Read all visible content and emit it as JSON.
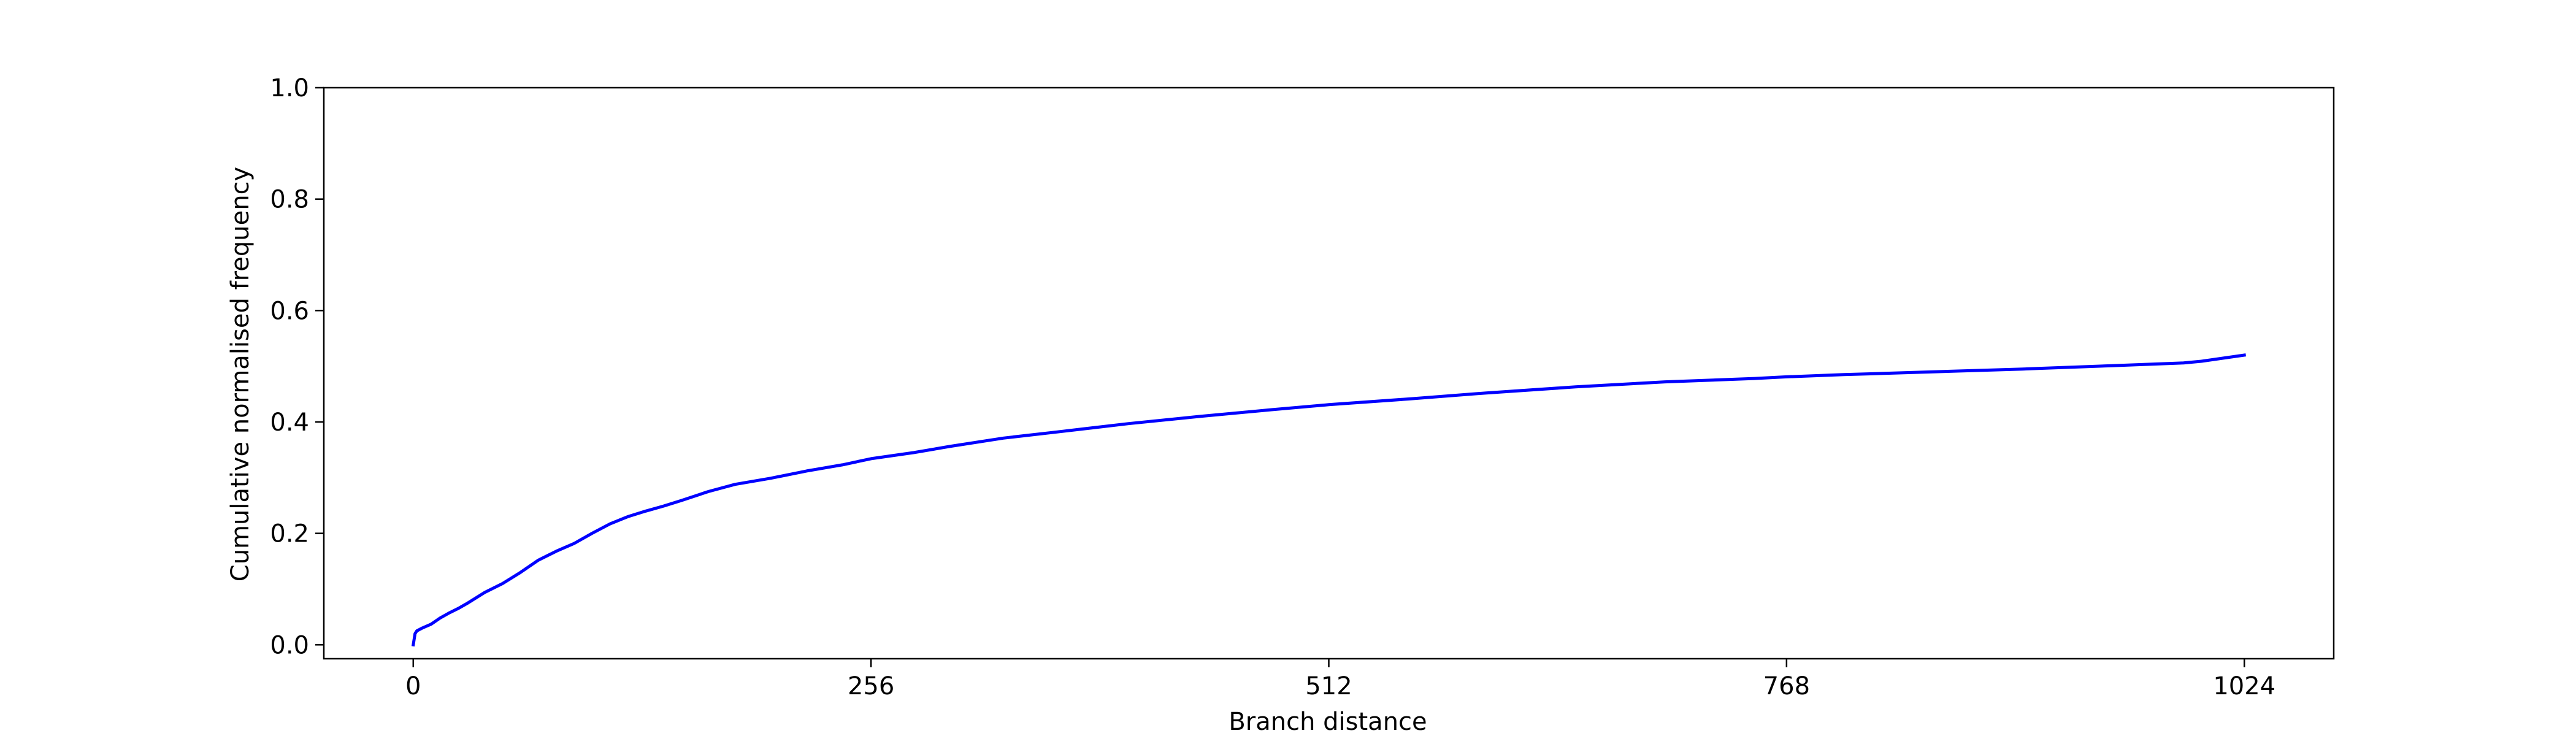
{
  "chart_data": {
    "type": "line",
    "title": "",
    "xlabel": "Branch distance",
    "ylabel": "Cumulative normalised frequency",
    "xlim": [
      -50,
      1074
    ],
    "ylim": [
      -0.025,
      1.0
    ],
    "xticks": [
      0,
      256,
      512,
      768,
      1024
    ],
    "yticks": [
      0.0,
      0.2,
      0.4,
      0.6,
      0.8,
      1.0
    ],
    "xtick_labels": [
      "0",
      "256",
      "512",
      "768",
      "1024"
    ],
    "ytick_labels": [
      "0.0",
      "0.2",
      "0.4",
      "0.6",
      "0.8",
      "1.0"
    ],
    "grid": false,
    "legend": "none",
    "series": [
      {
        "color": "#0000ff",
        "x": [
          0,
          1,
          2,
          5,
          10,
          15,
          20,
          25,
          30,
          40,
          50,
          60,
          70,
          80,
          90,
          100,
          110,
          120,
          130,
          140,
          150,
          165,
          180,
          200,
          220,
          240,
          256,
          280,
          300,
          330,
          360,
          400,
          440,
          480,
          512,
          560,
          600,
          650,
          700,
          750,
          768,
          800,
          850,
          900,
          950,
          990,
          1000,
          1024
        ],
        "y": [
          0.0,
          0.02,
          0.025,
          0.03,
          0.037,
          0.048,
          0.057,
          0.065,
          0.074,
          0.094,
          0.11,
          0.13,
          0.152,
          0.168,
          0.182,
          0.2,
          0.217,
          0.23,
          0.24,
          0.249,
          0.259,
          0.275,
          0.288,
          0.299,
          0.312,
          0.323,
          0.334,
          0.345,
          0.356,
          0.371,
          0.382,
          0.397,
          0.41,
          0.422,
          0.431,
          0.442,
          0.452,
          0.463,
          0.472,
          0.478,
          0.481,
          0.485,
          0.49,
          0.495,
          0.501,
          0.506,
          0.509,
          0.52
        ]
      }
    ]
  }
}
